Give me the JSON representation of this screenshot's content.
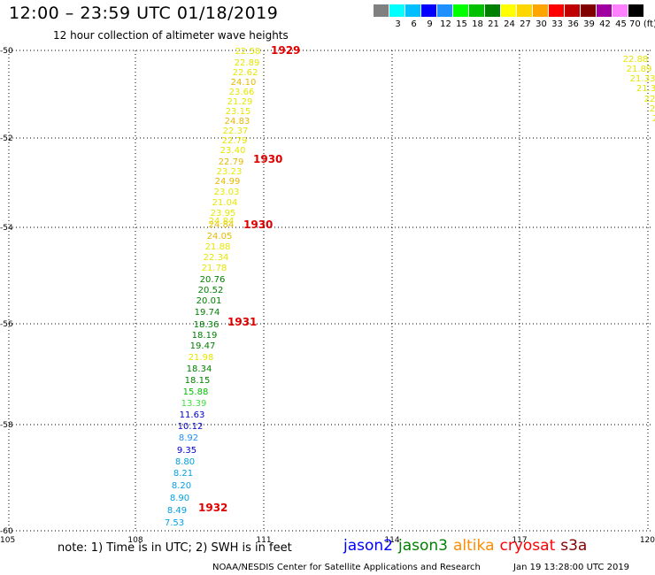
{
  "header": {
    "title": "12:00 – 23:59 UTC 01/18/2019",
    "subtitle": "12 hour collection of altimeter wave heights"
  },
  "legend": {
    "swatches": [
      {
        "color": "#808080",
        "label": ""
      },
      {
        "color": "#00ffff",
        "label": "3"
      },
      {
        "color": "#00bfff",
        "label": "6"
      },
      {
        "color": "#0000ff",
        "label": "9"
      },
      {
        "color": "#1e90ff",
        "label": "12"
      },
      {
        "color": "#00ff00",
        "label": "15"
      },
      {
        "color": "#00c000",
        "label": "18"
      },
      {
        "color": "#008000",
        "label": "21"
      },
      {
        "color": "#ffff00",
        "label": "24"
      },
      {
        "color": "#ffd700",
        "label": "27"
      },
      {
        "color": "#ffa500",
        "label": "30"
      },
      {
        "color": "#ff0000",
        "label": "33"
      },
      {
        "color": "#c00000",
        "label": "36"
      },
      {
        "color": "#800000",
        "label": "39"
      },
      {
        "color": "#a000a0",
        "label": "42"
      },
      {
        "color": "#ff80ff",
        "label": "45"
      },
      {
        "color": "#000000",
        "label": "70 (ft)"
      }
    ]
  },
  "axes": {
    "lat_labels": [
      "-50",
      "-52",
      "-54",
      "-56",
      "-58",
      "-60"
    ],
    "lon_labels": [
      "105",
      "108",
      "111",
      "114",
      "117",
      "120"
    ]
  },
  "track_main": {
    "swh": [
      {
        "v": "22.58",
        "c": "#e6e600"
      },
      {
        "v": "22.89",
        "c": "#e6e600"
      },
      {
        "v": "22.62",
        "c": "#e6e600"
      },
      {
        "v": "24.10",
        "c": "#e6b800"
      },
      {
        "v": "23.66",
        "c": "#e6e600"
      },
      {
        "v": "21.29",
        "c": "#e6e600"
      },
      {
        "v": "23.15",
        "c": "#e6e600"
      },
      {
        "v": "24.83",
        "c": "#e6b800"
      },
      {
        "v": "22.37",
        "c": "#e6e600"
      },
      {
        "v": "22.79",
        "c": "#e6e600"
      },
      {
        "v": "23.40",
        "c": "#e6e600"
      },
      {
        "v": "22.79",
        "c": "#e6b800"
      },
      {
        "v": "23.23",
        "c": "#e6e600"
      },
      {
        "v": "24.99",
        "c": "#e6b800"
      },
      {
        "v": "23.03",
        "c": "#e6e600"
      },
      {
        "v": "21.04",
        "c": "#e6e600"
      },
      {
        "v": "23.95",
        "c": "#e6e600"
      },
      {
        "v": "24.84",
        "c": "#e6b800"
      },
      {
        "v": "24.05",
        "c": "#e6b800"
      },
      {
        "v": "21.88",
        "c": "#e6e600"
      },
      {
        "v": "22.34",
        "c": "#e6e600"
      },
      {
        "v": "21.78",
        "c": "#e6e600"
      },
      {
        "v": "20.76",
        "c": "#008000"
      },
      {
        "v": "20.52",
        "c": "#008000"
      },
      {
        "v": "20.01",
        "c": "#008000"
      },
      {
        "v": "19.74",
        "c": "#008000"
      },
      {
        "v": "18.36",
        "c": "#008000"
      },
      {
        "v": "18.19",
        "c": "#008000"
      },
      {
        "v": "19.47",
        "c": "#008000"
      },
      {
        "v": "21.98",
        "c": "#e6e600"
      },
      {
        "v": "18.34",
        "c": "#008000"
      },
      {
        "v": "18.15",
        "c": "#008000"
      },
      {
        "v": "15.88",
        "c": "#00c000"
      },
      {
        "v": "13.39",
        "c": "#40e040"
      },
      {
        "v": "11.63",
        "c": "#0000cc"
      },
      {
        "v": "10.12",
        "c": "#0000cc"
      },
      {
        "v": "8.92",
        "c": "#1e90ff"
      },
      {
        "v": "9.35",
        "c": "#0000cc"
      },
      {
        "v": "8.80",
        "c": "#00a0e0"
      },
      {
        "v": "8.21",
        "c": "#00a0e0"
      },
      {
        "v": "8.20",
        "c": "#00a0e0"
      },
      {
        "v": "8.90",
        "c": "#00a0e0"
      },
      {
        "v": "8.49",
        "c": "#00a0e0"
      },
      {
        "v": "7.53",
        "c": "#00a0e0"
      }
    ],
    "overlap_label": {
      "v": "24.84",
      "c": "#e6e600"
    },
    "times": [
      "1929",
      "1930",
      "1930",
      "1931",
      "1932"
    ]
  },
  "track_right": {
    "swh": [
      {
        "v": "22.88",
        "c": "#e6e600"
      },
      {
        "v": "21.89",
        "c": "#e6e600"
      },
      {
        "v": "21.33",
        "c": "#e6e600"
      },
      {
        "v": "21.3",
        "c": "#e6e600"
      },
      {
        "v": "22",
        "c": "#e6e600"
      },
      {
        "v": "2",
        "c": "#e6e600"
      },
      {
        "v": "2",
        "c": "#e6e600"
      }
    ]
  },
  "footer": {
    "note": "note:  1) Time is in UTC;  2) SWH is in feet",
    "missions": [
      {
        "name": "jason2",
        "color": "#0000ff"
      },
      {
        "name": "jason3",
        "color": "#008000"
      },
      {
        "name": "altika",
        "color": "#ff8c00"
      },
      {
        "name": "cryosat",
        "color": "#ff0000"
      },
      {
        "name": "s3a",
        "color": "#800000"
      }
    ],
    "credit": "NOAA/NESDIS Center for Satellite Applications and Research",
    "timestamp": "Jan 19 13:28:00 UTC 2019"
  }
}
